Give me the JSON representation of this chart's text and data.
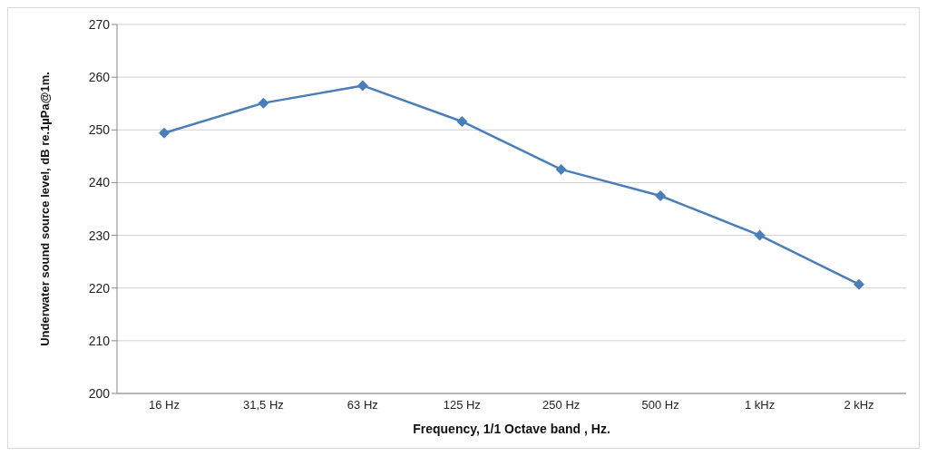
{
  "chart_data": {
    "type": "line",
    "xlabel": "Frequency, 1/1 Octave band , Hz.",
    "ylabel": "Underwater sound source level, dB re.1µPa@1m.",
    "categories": [
      "16 Hz",
      "31,5 Hz",
      "63 Hz",
      "125 Hz",
      "250 Hz",
      "500 Hz",
      "1 kHz",
      "2 kHz"
    ],
    "series": [
      {
        "color": "#4a7ebb",
        "values": [
          249.4,
          255.1,
          258.4,
          251.6,
          242.5,
          237.5,
          230.0,
          220.7
        ]
      }
    ],
    "ylim": [
      200,
      270
    ],
    "yticks": [
      200,
      210,
      220,
      230,
      240,
      250,
      260,
      270
    ],
    "grid": "y",
    "legend": false,
    "marker": "diamond",
    "line_style": "solid"
  }
}
